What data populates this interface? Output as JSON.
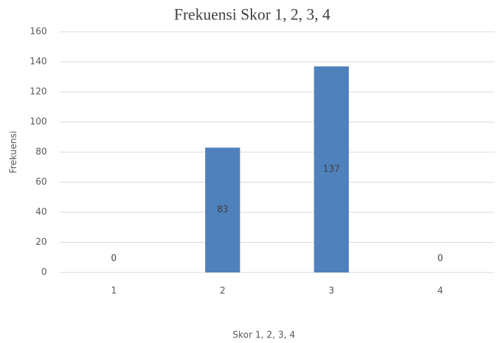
{
  "chart_data": {
    "type": "bar",
    "title": "Frekuensi Skor 1, 2, 3, 4",
    "x_label": "Skor 1, 2, 3, 4",
    "y_label": "Frekuensi",
    "categories": [
      "1",
      "2",
      "3",
      "4"
    ],
    "values": [
      0,
      83,
      137,
      0
    ],
    "color": "#4f81bd",
    "ylim": [
      0,
      160
    ],
    "yticks": [
      0,
      20,
      40,
      60,
      80,
      100,
      120,
      140,
      160
    ],
    "grid": true
  }
}
